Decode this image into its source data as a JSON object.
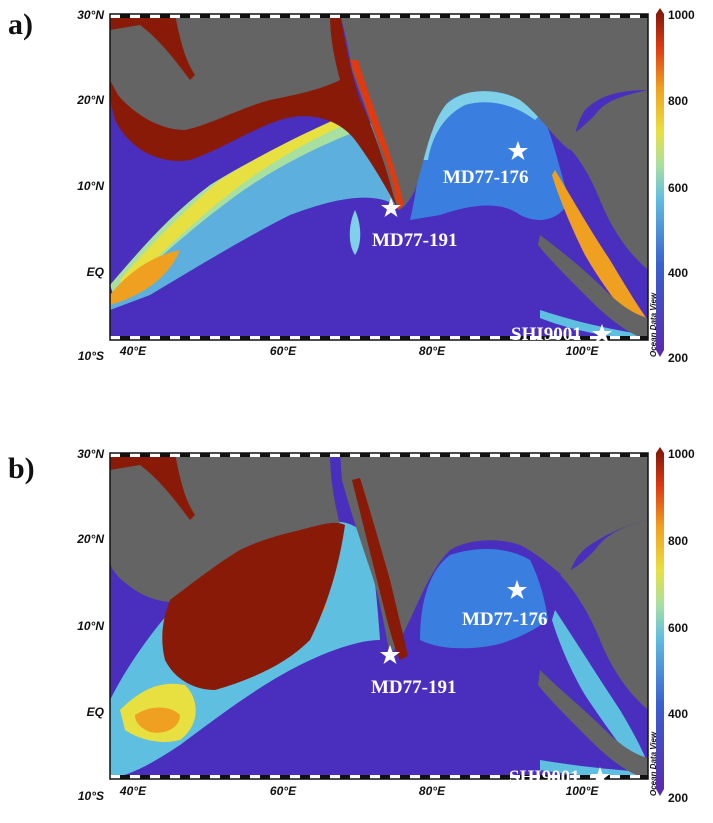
{
  "panels": [
    {
      "label": "a)",
      "lat_ticks": [
        "30°N",
        "20°N",
        "10°N",
        "EQ",
        "10°S"
      ],
      "lon_ticks": [
        "40°E",
        "60°E",
        "80°E",
        "100°E"
      ],
      "colorbar_ticks": [
        "1000",
        "800",
        "600",
        "400",
        "200"
      ],
      "watermark": "Ocean Data View",
      "stations": [
        {
          "name": "MD77-191"
        },
        {
          "name": "MD77-176"
        },
        {
          "name": "SHI9001"
        }
      ]
    },
    {
      "label": "b)",
      "lat_ticks": [
        "30°N",
        "20°N",
        "10°N",
        "EQ",
        "10°S"
      ],
      "lon_ticks": [
        "40°E",
        "60°E",
        "80°E",
        "100°E"
      ],
      "colorbar_ticks": [
        "1000",
        "800",
        "600",
        "400",
        "200"
      ],
      "watermark": "Ocean Data View",
      "stations": [
        {
          "name": "MD77-191"
        },
        {
          "name": "MD77-176"
        },
        {
          "name": "SHI9001"
        }
      ]
    }
  ],
  "colors": {
    "land": "#646464",
    "ocean_low": "#4a2fbf",
    "scale": [
      "#5a2bb0",
      "#3a5fd0",
      "#5fbfe0",
      "#a8e0a0",
      "#e8e040",
      "#f0a020",
      "#e03a10",
      "#8a1a08"
    ]
  }
}
